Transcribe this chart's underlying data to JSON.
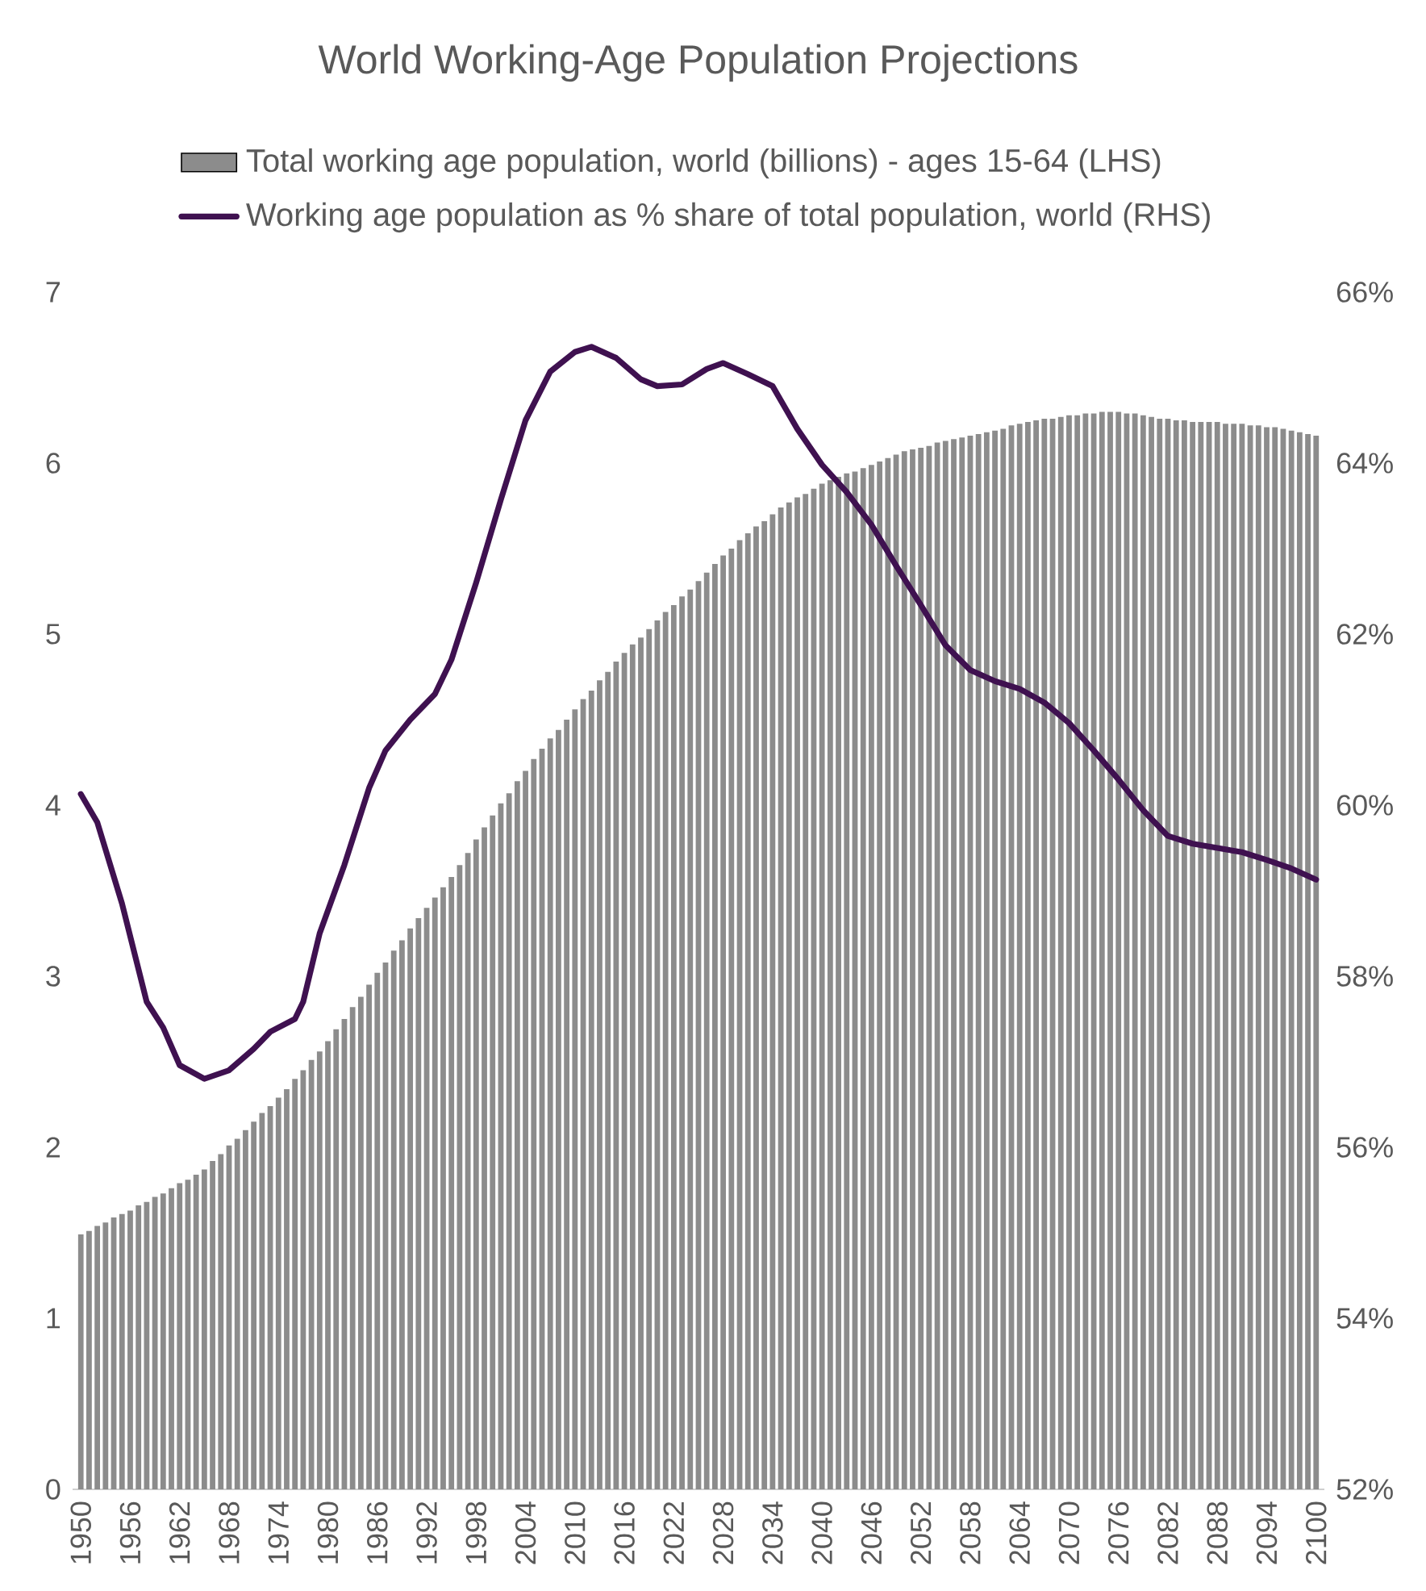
{
  "chart_data": {
    "type": "bar",
    "title": "World Working-Age Population Projections",
    "legend": "top",
    "x": [
      1950,
      1951,
      1952,
      1953,
      1954,
      1955,
      1956,
      1957,
      1958,
      1959,
      1960,
      1961,
      1962,
      1963,
      1964,
      1965,
      1966,
      1967,
      1968,
      1969,
      1970,
      1971,
      1972,
      1973,
      1974,
      1975,
      1976,
      1977,
      1978,
      1979,
      1980,
      1981,
      1982,
      1983,
      1984,
      1985,
      1986,
      1987,
      1988,
      1989,
      1990,
      1991,
      1992,
      1993,
      1994,
      1995,
      1996,
      1997,
      1998,
      1999,
      2000,
      2001,
      2002,
      2003,
      2004,
      2005,
      2006,
      2007,
      2008,
      2009,
      2010,
      2011,
      2012,
      2013,
      2014,
      2015,
      2016,
      2017,
      2018,
      2019,
      2020,
      2021,
      2022,
      2023,
      2024,
      2025,
      2026,
      2027,
      2028,
      2029,
      2030,
      2031,
      2032,
      2033,
      2034,
      2035,
      2036,
      2037,
      2038,
      2039,
      2040,
      2041,
      2042,
      2043,
      2044,
      2045,
      2046,
      2047,
      2048,
      2049,
      2050,
      2051,
      2052,
      2053,
      2054,
      2055,
      2056,
      2057,
      2058,
      2059,
      2060,
      2061,
      2062,
      2063,
      2064,
      2065,
      2066,
      2067,
      2068,
      2069,
      2070,
      2071,
      2072,
      2073,
      2074,
      2075,
      2076,
      2077,
      2078,
      2079,
      2080,
      2081,
      2082,
      2083,
      2084,
      2085,
      2086,
      2087,
      2088,
      2089,
      2090,
      2091,
      2092,
      2093,
      2094,
      2095,
      2096,
      2097,
      2098,
      2099,
      2100
    ],
    "xlim": [
      1949,
      2101
    ],
    "xticks": [
      1950,
      1956,
      1962,
      1968,
      1974,
      1980,
      1986,
      1992,
      1998,
      2004,
      2010,
      2016,
      2022,
      2028,
      2034,
      2040,
      2046,
      2052,
      2058,
      2064,
      2070,
      2076,
      2082,
      2088,
      2094,
      2100
    ],
    "ylim": [
      0,
      7
    ],
    "yticks": [
      0,
      1,
      2,
      3,
      4,
      5,
      6,
      7
    ],
    "y2lim": [
      52,
      66
    ],
    "y2ticks": [
      {
        "value": 52,
        "label": "52%"
      },
      {
        "value": 54,
        "label": "54%"
      },
      {
        "value": 56,
        "label": "56%"
      },
      {
        "value": 58,
        "label": "58%"
      },
      {
        "value": 60,
        "label": "60%"
      },
      {
        "value": 62,
        "label": "62%"
      },
      {
        "value": 64,
        "label": "64%"
      },
      {
        "value": 66,
        "label": "66%"
      }
    ],
    "series": [
      {
        "name": "Total working age population, world (billions) - ages 15-64 (LHS)",
        "color": "#8c8c8c",
        "values": [
          1.49,
          1.51,
          1.54,
          1.56,
          1.59,
          1.61,
          1.63,
          1.66,
          1.68,
          1.71,
          1.73,
          1.76,
          1.79,
          1.81,
          1.84,
          1.87,
          1.92,
          1.96,
          2.01,
          2.05,
          2.1,
          2.15,
          2.2,
          2.24,
          2.29,
          2.34,
          2.4,
          2.45,
          2.51,
          2.56,
          2.62,
          2.69,
          2.75,
          2.82,
          2.88,
          2.95,
          3.02,
          3.08,
          3.15,
          3.21,
          3.28,
          3.34,
          3.4,
          3.46,
          3.52,
          3.58,
          3.65,
          3.72,
          3.8,
          3.87,
          3.94,
          4.01,
          4.07,
          4.14,
          4.2,
          4.27,
          4.33,
          4.39,
          4.44,
          4.5,
          4.56,
          4.62,
          4.67,
          4.73,
          4.78,
          4.84,
          4.89,
          4.94,
          4.98,
          5.03,
          5.08,
          5.13,
          5.17,
          5.22,
          5.26,
          5.31,
          5.36,
          5.41,
          5.46,
          5.5,
          5.55,
          5.59,
          5.63,
          5.66,
          5.7,
          5.74,
          5.77,
          5.8,
          5.82,
          5.85,
          5.88,
          5.9,
          5.92,
          5.94,
          5.95,
          5.97,
          5.99,
          6.01,
          6.03,
          6.05,
          6.07,
          6.08,
          6.09,
          6.1,
          6.12,
          6.13,
          6.14,
          6.15,
          6.16,
          6.17,
          6.18,
          6.19,
          6.2,
          6.22,
          6.23,
          6.24,
          6.25,
          6.26,
          6.26,
          6.27,
          6.28,
          6.28,
          6.29,
          6.29,
          6.3,
          6.3,
          6.3,
          6.29,
          6.29,
          6.28,
          6.27,
          6.26,
          6.26,
          6.25,
          6.25,
          6.24,
          6.24,
          6.24,
          6.24,
          6.23,
          6.23,
          6.23,
          6.22,
          6.22,
          6.21,
          6.21,
          6.2,
          6.19,
          6.18,
          6.17,
          6.16
        ]
      },
      {
        "name": "Working age population as % share of total population, world (RHS)",
        "type": "line",
        "axis": "y2",
        "color": "#3f1150",
        "x": [
          1950,
          1952,
          1955,
          1958,
          1960,
          1962,
          1965,
          1968,
          1971,
          1973,
          1976,
          1977,
          1979,
          1982,
          1985,
          1987,
          1990,
          1993,
          1995,
          1998,
          2001,
          2004,
          2007,
          2010,
          2012,
          2015,
          2018,
          2020,
          2023,
          2026,
          2028,
          2031,
          2034,
          2037,
          2040,
          2043,
          2046,
          2049,
          2052,
          2055,
          2058,
          2061,
          2064,
          2067,
          2070,
          2073,
          2076,
          2079,
          2082,
          2085,
          2088,
          2091,
          2094,
          2097,
          2100
        ],
        "values": [
          60.13,
          59.8,
          58.85,
          57.7,
          57.4,
          56.96,
          56.8,
          56.9,
          57.15,
          57.35,
          57.5,
          57.7,
          58.5,
          59.3,
          60.2,
          60.64,
          61.0,
          61.3,
          61.7,
          62.6,
          63.57,
          64.5,
          65.07,
          65.3,
          65.36,
          65.23,
          64.98,
          64.9,
          64.92,
          65.1,
          65.17,
          65.04,
          64.9,
          64.4,
          63.98,
          63.66,
          63.28,
          62.8,
          62.34,
          61.87,
          61.58,
          61.45,
          61.36,
          61.2,
          60.96,
          60.64,
          60.3,
          59.94,
          59.64,
          59.55,
          59.5,
          59.45,
          59.36,
          59.26,
          59.13
        ]
      }
    ]
  }
}
